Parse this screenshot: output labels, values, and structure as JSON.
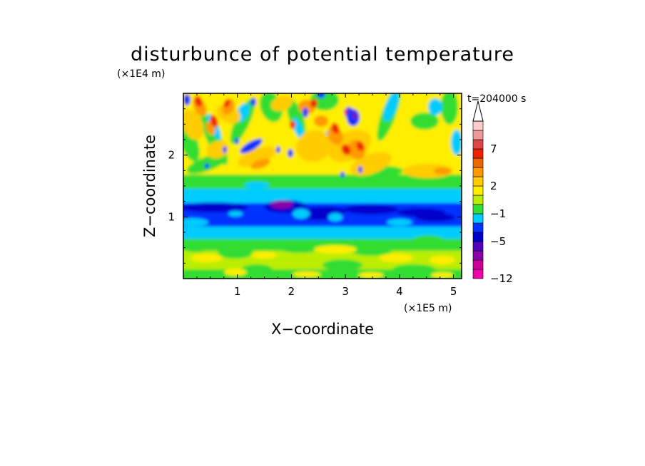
{
  "chart_data": {
    "type": "heatmap",
    "title": "disturbunce of potential temperature",
    "xlabel": "X−coordinate",
    "ylabel": "Z−coordinate",
    "x_unit": "(×1E5 m)",
    "y_unit": "(×1E4 m)",
    "time_label": "t=204000 s",
    "xlim": [
      0,
      5.15
    ],
    "ylim": [
      0,
      3.0
    ],
    "x_ticks": [
      {
        "value": 1,
        "label": "1"
      },
      {
        "value": 2,
        "label": "2"
      },
      {
        "value": 3,
        "label": "3"
      },
      {
        "value": 4,
        "label": "4"
      },
      {
        "value": 5,
        "label": "5"
      }
    ],
    "y_ticks": [
      {
        "value": 1,
        "label": "1"
      },
      {
        "value": 2,
        "label": "2"
      }
    ],
    "colorbar": {
      "colors": [
        "#ee00aa",
        "#cc0099",
        "#8800aa",
        "#5500bb",
        "#0000cc",
        "#0033ff",
        "#00ccff",
        "#33dd33",
        "#bbee00",
        "#ffee00",
        "#ffcc00",
        "#ff9900",
        "#ee6600",
        "#ee2200",
        "#dd4444",
        "#ee9999",
        "#ffcccc"
      ],
      "labels": [
        {
          "value": -12,
          "label": "−12"
        },
        {
          "value": -5,
          "label": "−5"
        },
        {
          "value": -1,
          "label": "−1"
        },
        {
          "value": 2,
          "label": "2"
        },
        {
          "value": 7,
          "label": "7"
        }
      ],
      "label_positions": [
        0,
        4,
        7,
        10,
        14
      ],
      "extend_max": true
    },
    "field_palette": {
      "magenta": "#cc0099",
      "purple": "#8800aa",
      "navy": "#0000cc",
      "blue": "#0033ff",
      "cyan": "#00ccff",
      "green": "#33dd33",
      "lime": "#bbee00",
      "yellow": "#ffee00",
      "gold": "#ffcc00",
      "orange": "#ff9900",
      "red": "#ee2200"
    }
  }
}
